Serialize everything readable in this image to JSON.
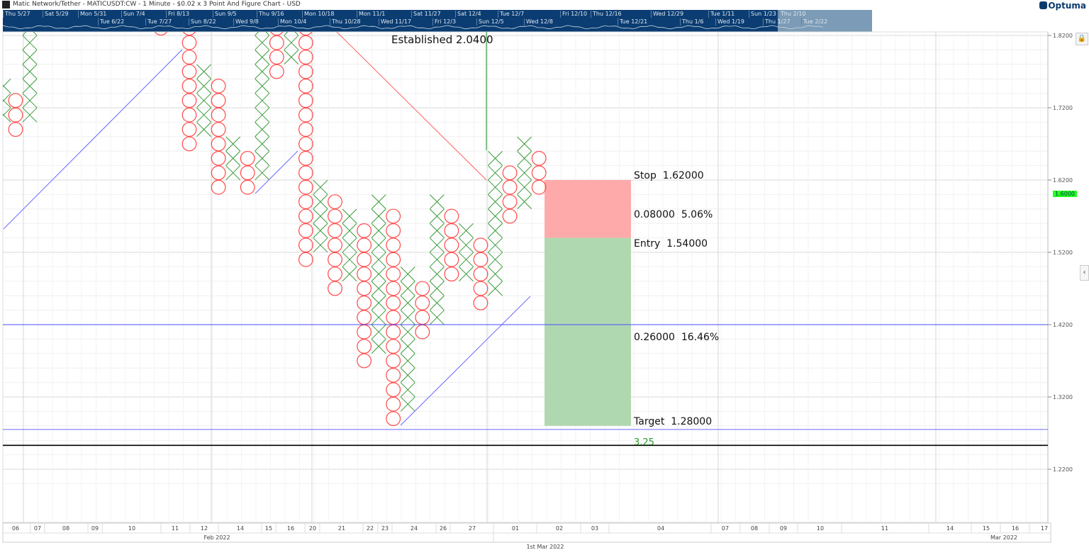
{
  "title": "Matic Network/Tether - MATICUSDT:CW - 1 Minute - $0.02 x 3 Point And Figure Chart - USD",
  "logo": "Optuma",
  "navigator": {
    "labels": [
      "Thu 5/27",
      "Sat 5/29",
      "Mon 5/31",
      "Tue 6/22",
      "Sun 7/4",
      "Tue 7/27",
      "Fri 8/13",
      "Sun 8/22",
      "Sun 9/5",
      "Wed 9/8",
      "Thu 9/16",
      "Mon 10/4",
      "Mon 10/18",
      "Thu 10/28",
      "Mon 11/1",
      "Wed 11/17",
      "Sat 11/27",
      "Fri 12/3",
      "Sat 12/4",
      "Sun 12/5",
      "Tue 12/7",
      "Wed 12/8",
      "Fri 12/10",
      "Thu 12/16",
      "Tue 12/21",
      "Wed 12/29",
      "Thu 1/6",
      "Tue 1/11",
      "Wed 1/19",
      "Sun 1/23",
      "Thu 1/27",
      "Thu 2/10",
      "Tue 2/22"
    ]
  },
  "colors": {
    "x": "#3a9a3a",
    "o": "#ff4a4a",
    "trend": "#6a6aff",
    "stop_zone": "#ffaaaa",
    "target_zone": "#b0d8b0",
    "current_price": "#22ff22",
    "navigator": "#0b3d72"
  },
  "icons": {
    "lock": "lock-icon",
    "collapse": "chevron-left-icon"
  },
  "chart_data": {
    "type": "point-and-figure",
    "box_size": 0.02,
    "reversal": 3,
    "ylim": [
      1.2,
      1.83
    ],
    "y_ticks": [
      "1.8200",
      "1.7200",
      "1.6200",
      "1.5200",
      "1.4200",
      "1.3200",
      "1.2200"
    ],
    "current_price": "1.6000",
    "columns": [
      {
        "t": "X",
        "low": 1.7,
        "high": 1.76
      },
      {
        "t": "O",
        "low": 1.68,
        "high": 1.74
      },
      {
        "t": "X",
        "low": 1.7,
        "high": 1.86
      },
      {
        "t": "O",
        "low": 1.82,
        "high": 1.9,
        "gap": true
      },
      {
        "t": "O",
        "low": 1.66,
        "high": 1.86
      },
      {
        "t": "X",
        "low": 1.68,
        "high": 1.78
      },
      {
        "t": "O",
        "low": 1.6,
        "high": 1.76
      },
      {
        "t": "X",
        "low": 1.62,
        "high": 1.68
      },
      {
        "t": "O",
        "low": 1.6,
        "high": 1.66
      },
      {
        "t": "X",
        "low": 1.62,
        "high": 1.86
      },
      {
        "t": "O",
        "low": 1.76,
        "high": 1.84
      },
      {
        "t": "X",
        "low": 1.78,
        "high": 1.86
      },
      {
        "t": "O",
        "low": 1.5,
        "high": 1.86
      },
      {
        "t": "X",
        "low": 1.52,
        "high": 1.62
      },
      {
        "t": "O",
        "low": 1.46,
        "high": 1.6
      },
      {
        "t": "X",
        "low": 1.48,
        "high": 1.58
      },
      {
        "t": "O",
        "low": 1.36,
        "high": 1.56
      },
      {
        "t": "X",
        "low": 1.38,
        "high": 1.6
      },
      {
        "t": "O",
        "low": 1.28,
        "high": 1.58
      },
      {
        "t": "X",
        "low": 1.3,
        "high": 1.5
      },
      {
        "t": "O",
        "low": 1.4,
        "high": 1.48
      },
      {
        "t": "X",
        "low": 1.42,
        "high": 1.6
      },
      {
        "t": "O",
        "low": 1.48,
        "high": 1.58
      },
      {
        "t": "X",
        "low": 1.48,
        "high": 1.56
      },
      {
        "t": "O",
        "low": 1.44,
        "high": 1.54
      },
      {
        "t": "X",
        "low": 1.46,
        "high": 1.66
      },
      {
        "t": "O",
        "low": 1.56,
        "high": 1.64
      },
      {
        "t": "X",
        "low": 1.58,
        "high": 1.68
      },
      {
        "t": "O",
        "low": 1.6,
        "high": 1.66
      }
    ],
    "horizontal_lines": [
      {
        "price": 1.42,
        "color": "#4a4aff"
      },
      {
        "price": 1.275,
        "color": "#6a6aff"
      },
      {
        "price": 1.253,
        "color": "#000000"
      }
    ],
    "annotations": {
      "established": "Established 2.0400",
      "stop_label": "Stop",
      "stop": "1.62000",
      "risk": "0.08000",
      "risk_pct": "5.06%",
      "entry_label": "Entry",
      "entry": "1.54000",
      "reward": "0.26000",
      "reward_pct": "16.46%",
      "target_label": "Target",
      "target": "1.28000",
      "ratio": "3.25"
    },
    "x_axis": {
      "days": [
        "06",
        "07",
        "08",
        "09",
        "10",
        "11",
        "12",
        "14",
        "15",
        "16",
        "20",
        "21",
        "22",
        "23",
        "24",
        "26",
        "27",
        "01",
        "02",
        "03",
        "04",
        "07",
        "08",
        "09",
        "10",
        "11",
        "14",
        "15",
        "16",
        "17"
      ],
      "months": [
        "Feb 2022",
        "Mar 2022"
      ],
      "footer": "1st Mar 2022"
    }
  }
}
